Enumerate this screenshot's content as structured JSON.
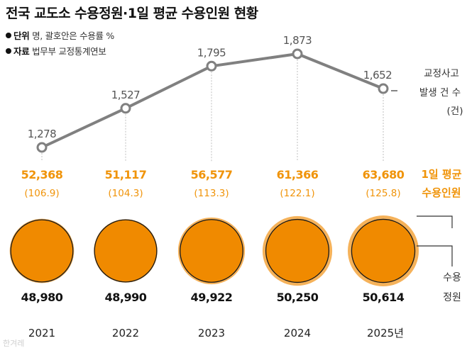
{
  "title": "전국 교도소 수용정원·1일 평균 수용인원 현황",
  "unit_key": "단위",
  "unit_text": "명, 괄호안은 수용률 %",
  "source_key": "자료",
  "source_text": "법무부 교정통계연보",
  "colors": {
    "accent": "#f0940a",
    "line": "#808080",
    "circle_fill": "#f08a00",
    "circle_ring": "#f5b25a",
    "text_dark": "#111111"
  },
  "labels": {
    "incidents": [
      "교정사고",
      "발생 건 수",
      "(건)"
    ],
    "avg": [
      "1일 평균",
      "수용인원"
    ],
    "capacity": [
      "수용",
      "정원"
    ]
  },
  "watermark": "한겨레",
  "chart_data": {
    "type": "line",
    "title": "전국 교도소 수용정원·1일 평균 수용인원 현황",
    "categories": [
      "2021",
      "2022",
      "2023",
      "2024",
      "2025년"
    ],
    "series": [
      {
        "name": "교정사고 발생 건 수",
        "values": [
          1278,
          1527,
          1795,
          1873,
          1652
        ],
        "labels": [
          "1,278",
          "1,527",
          "1,795",
          "1,873",
          "1,652"
        ]
      },
      {
        "name": "1일 평균 수용인원",
        "values": [
          52368,
          51117,
          56577,
          61366,
          63680
        ],
        "labels": [
          "52,368",
          "51,117",
          "56,577",
          "61,366",
          "63,680"
        ]
      },
      {
        "name": "수용률",
        "values": [
          106.9,
          104.3,
          113.3,
          122.1,
          125.8
        ],
        "labels": [
          "(106.9)",
          "(104.3)",
          "(113.3)",
          "(122.1)",
          "(125.8)"
        ]
      },
      {
        "name": "수용정원",
        "values": [
          48980,
          48990,
          49922,
          50250,
          50614
        ],
        "labels": [
          "48,980",
          "48,990",
          "49,922",
          "50,250",
          "50,614"
        ]
      }
    ]
  }
}
